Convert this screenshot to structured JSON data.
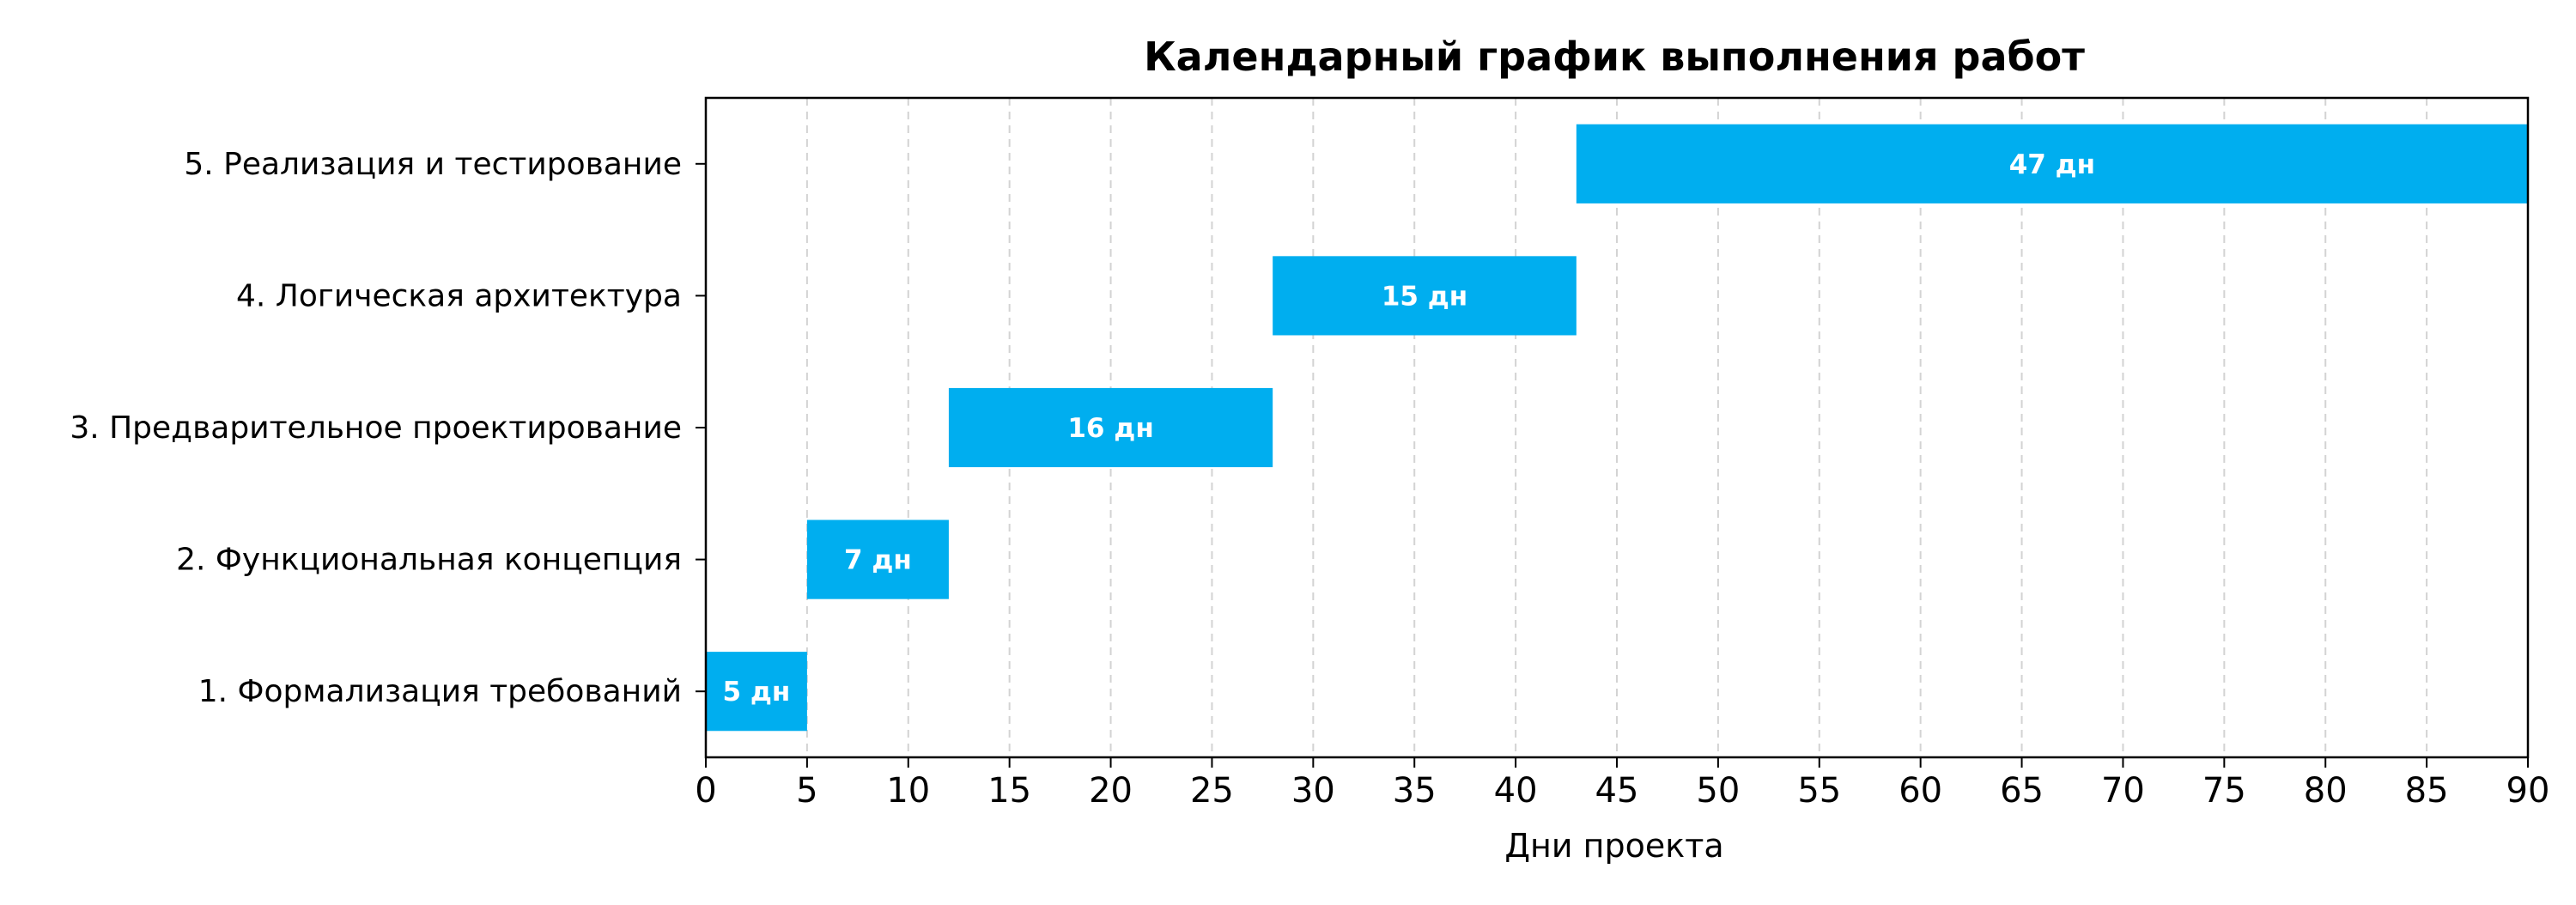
{
  "chart_data": {
    "type": "bar",
    "orientation": "horizontal",
    "title": "Календарный график выполнения работ",
    "xlabel": "Дни проекта",
    "ylabel": "",
    "xlim": [
      0,
      90
    ],
    "xticks": [
      0,
      5,
      10,
      15,
      20,
      25,
      30,
      35,
      40,
      45,
      50,
      55,
      60,
      65,
      70,
      75,
      80,
      85,
      90
    ],
    "grid": "vertical dashed",
    "bar_color": "#00AEEF",
    "tasks": [
      {
        "label": "1. Формализация требований",
        "start": 0,
        "duration": 5,
        "bar_label": "5 дн"
      },
      {
        "label": "2. Функциональная концепция",
        "start": 5,
        "duration": 7,
        "bar_label": "7 дн"
      },
      {
        "label": "3. Предварительное проектирование",
        "start": 12,
        "duration": 16,
        "bar_label": "16 дн"
      },
      {
        "label": "4. Логическая архитектура",
        "start": 28,
        "duration": 15,
        "bar_label": "15 дн"
      },
      {
        "label": "5. Реализация и тестирование",
        "start": 43,
        "duration": 47,
        "bar_label": "47 дн"
      }
    ]
  }
}
